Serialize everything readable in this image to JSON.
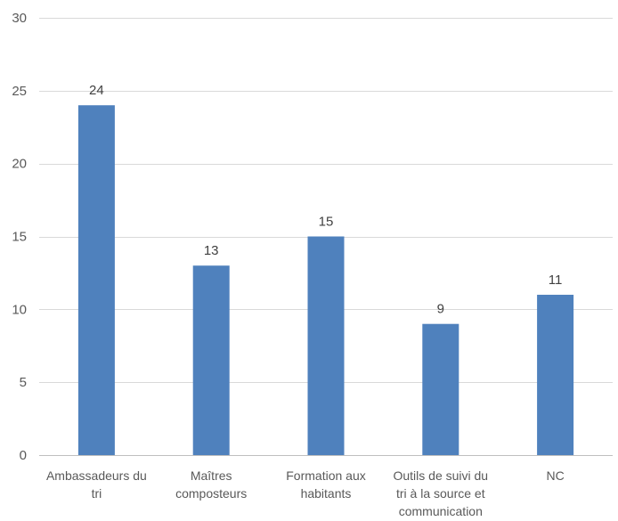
{
  "chart_data": {
    "type": "bar",
    "title": "",
    "xlabel": "",
    "ylabel": "",
    "categories": [
      [
        "Ambassadeurs du",
        "tri"
      ],
      [
        "Maîtres",
        "composteurs"
      ],
      [
        "Formation aux",
        "habitants"
      ],
      [
        "Outils de suivi du",
        "tri à la source et",
        "communication"
      ],
      [
        "NC"
      ]
    ],
    "values": [
      24,
      13,
      15,
      9,
      11
    ],
    "ylim": [
      0,
      30
    ],
    "yticks": [
      0,
      5,
      10,
      15,
      20,
      25,
      30
    ],
    "grid": true,
    "legend": "none",
    "data_labels": true,
    "colors": {
      "bar": "#4F81BD",
      "grid": "#D9D9D9",
      "axis": "#BFBFBF"
    }
  }
}
